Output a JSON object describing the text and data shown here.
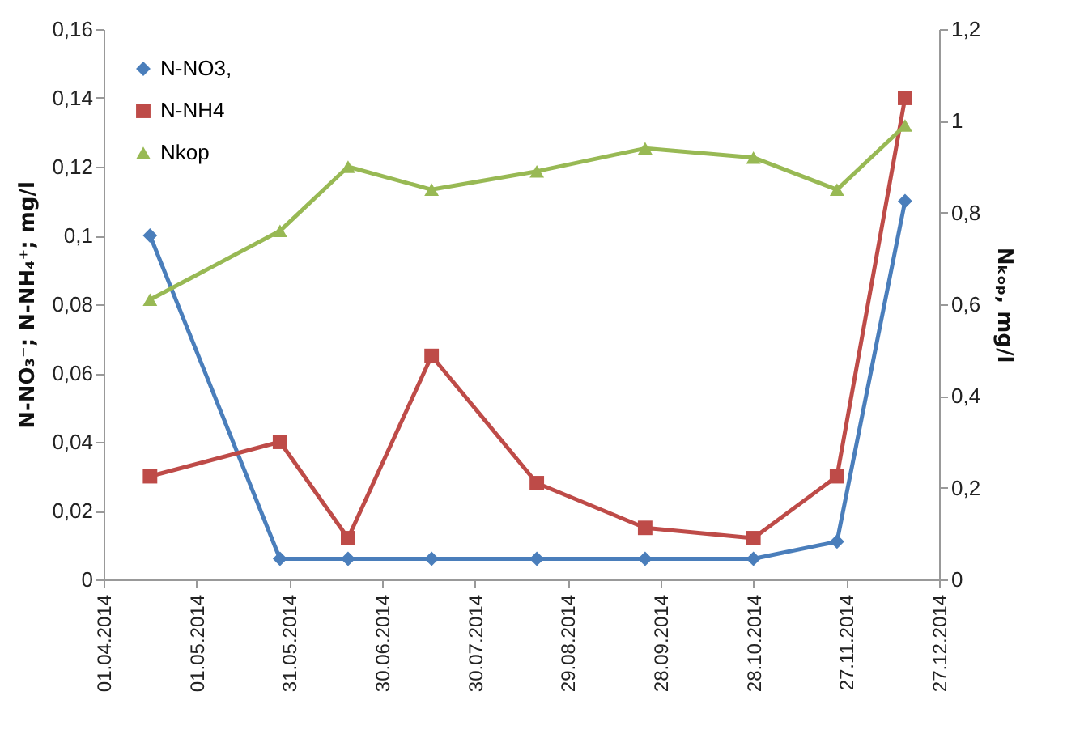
{
  "chart_data": {
    "type": "line",
    "ylabel": "N-NO₃⁻; N-NH₄⁺; mg/l",
    "y2label": "Nₖₒₚ, mg/l",
    "x": [
      "2014-04-16",
      "2014-05-28",
      "2014-06-19",
      "2014-07-16",
      "2014-08-19",
      "2014-09-23",
      "2014-10-28",
      "2014-11-24",
      "2014-12-16"
    ],
    "series": [
      {
        "name": "N-NO3,",
        "color": "#4a7ebb",
        "marker": "diamond",
        "values": [
          0.1,
          0.006,
          0.006,
          0.006,
          0.006,
          0.006,
          0.006,
          0.011,
          0.11
        ]
      },
      {
        "name": "N-NH4",
        "color": "#be4b48",
        "marker": "square",
        "values": [
          0.03,
          0.04,
          0.012,
          0.065,
          0.028,
          0.015,
          0.012,
          0.03,
          0.14
        ]
      },
      {
        "name": "Nkop",
        "color": "#98b954",
        "marker": "triangle",
        "axis": "y2",
        "values": [
          0.61,
          0.76,
          0.9,
          0.85,
          0.89,
          0.94,
          0.92,
          0.85,
          0.99
        ]
      }
    ],
    "xlim": [
      "2014-04-01",
      "2014-12-27"
    ],
    "xticks": [
      {
        "value": "2014-04-01",
        "label": "01.04.2014"
      },
      {
        "value": "2014-05-01",
        "label": "01.05.2014"
      },
      {
        "value": "2014-05-31",
        "label": "31.05.2014"
      },
      {
        "value": "2014-06-30",
        "label": "30.06.2014"
      },
      {
        "value": "2014-07-30",
        "label": "30.07.2014"
      },
      {
        "value": "2014-08-29",
        "label": "29.08.2014"
      },
      {
        "value": "2014-09-28",
        "label": "28.09.2014"
      },
      {
        "value": "2014-10-28",
        "label": "28.10.2014"
      },
      {
        "value": "2014-11-27",
        "label": "27.11.2014"
      },
      {
        "value": "2014-12-27",
        "label": "27.12.2014"
      }
    ],
    "ylim": [
      0,
      0.16
    ],
    "yticks": [
      {
        "value": 0,
        "label": "0"
      },
      {
        "value": 0.02,
        "label": "0,02"
      },
      {
        "value": 0.04,
        "label": "0,04"
      },
      {
        "value": 0.06,
        "label": "0,06"
      },
      {
        "value": 0.08,
        "label": "0,08"
      },
      {
        "value": 0.1,
        "label": "0,1"
      },
      {
        "value": 0.12,
        "label": "0,12"
      },
      {
        "value": 0.14,
        "label": "0,14"
      },
      {
        "value": 0.16,
        "label": "0,16"
      }
    ],
    "y2lim": [
      0,
      1.2
    ],
    "y2ticks": [
      {
        "value": 0,
        "label": "0"
      },
      {
        "value": 0.2,
        "label": "0,2"
      },
      {
        "value": 0.4,
        "label": "0,4"
      },
      {
        "value": 0.6,
        "label": "0,6"
      },
      {
        "value": 0.8,
        "label": "0,8"
      },
      {
        "value": 1,
        "label": "1"
      },
      {
        "value": 1.2,
        "label": "1,2"
      }
    ],
    "grid": false,
    "legend": "top left",
    "line_style": "solid"
  }
}
